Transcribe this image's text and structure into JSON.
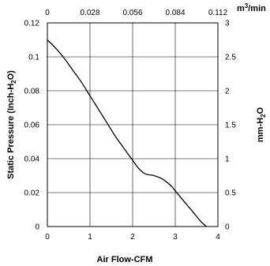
{
  "chart_data": {
    "type": "line",
    "xlabel": "Air Flow-CFM",
    "ylabel_parts": [
      "Static Pressure (Inch-H",
      "2",
      "O)"
    ],
    "y2label_parts": [
      "mm-H",
      "2",
      "O"
    ],
    "x2label_parts": [
      "m",
      "3",
      "/min"
    ],
    "xlim": [
      0,
      4
    ],
    "ylim": [
      0,
      0.12
    ],
    "x_ticks": [
      "0",
      "1",
      "2",
      "3",
      "4"
    ],
    "y_ticks": [
      "0",
      "0.02",
      "0.04",
      "0.06",
      "0.08",
      "0.1",
      "0.12"
    ],
    "x2_ticks": [
      "0",
      "0.028",
      "0.056",
      "0.084",
      "0.112"
    ],
    "y2_ticks": [
      "0",
      "0.5",
      "1",
      "1.5",
      "2",
      "2.5",
      "3"
    ],
    "grid": true,
    "series": [
      {
        "x": [
          0,
          0.2,
          0.4,
          0.6,
          0.8,
          1.0,
          1.2,
          1.4,
          1.6,
          1.8,
          2.0,
          2.15,
          2.3,
          2.5,
          2.7,
          2.9,
          3.0,
          3.2,
          3.4,
          3.6,
          3.73
        ],
        "y": [
          0.11,
          0.105,
          0.099,
          0.092,
          0.085,
          0.077,
          0.069,
          0.061,
          0.053,
          0.046,
          0.039,
          0.034,
          0.031,
          0.03,
          0.028,
          0.024,
          0.021,
          0.015,
          0.009,
          0.003,
          0.0
        ]
      }
    ]
  }
}
